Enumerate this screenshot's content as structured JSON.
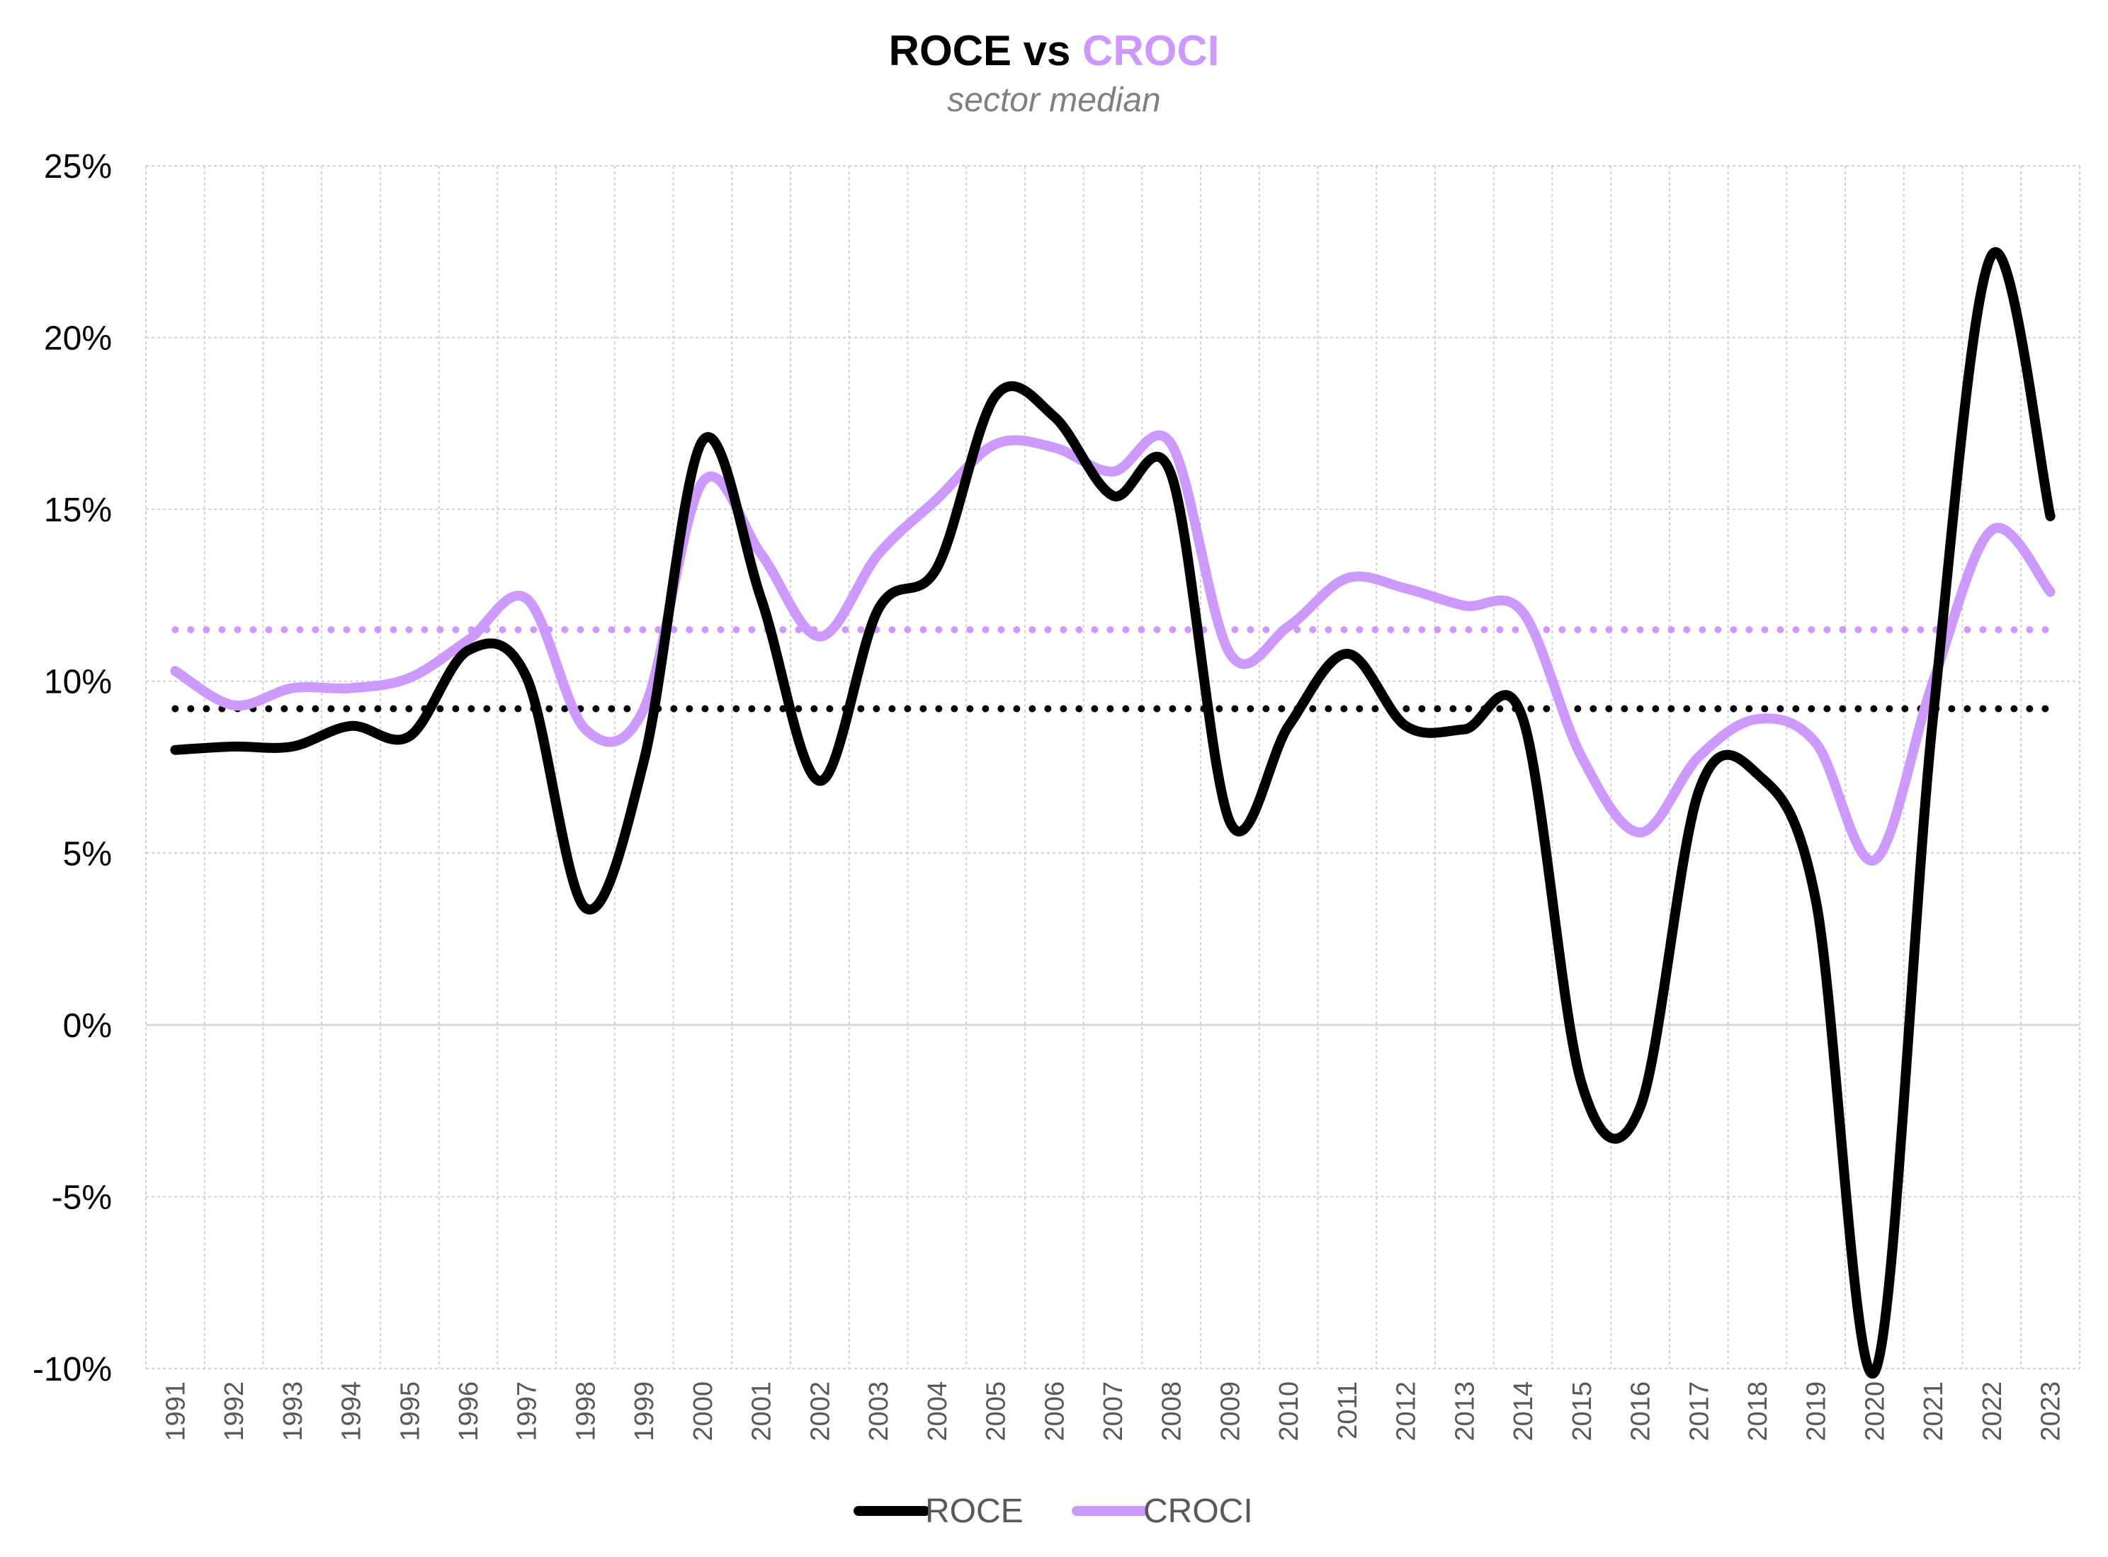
{
  "chart_data": {
    "type": "line",
    "title": {
      "parts": [
        {
          "text": "ROCE",
          "color": "#000000"
        },
        {
          "text": " vs ",
          "color": "#000000"
        },
        {
          "text": "CROCI",
          "color": "#cc99ff"
        }
      ]
    },
    "subtitle": "sector median",
    "xlabel": "",
    "ylabel": "",
    "ylim": [
      -0.1,
      0.25
    ],
    "yticks": [
      -0.1,
      -0.05,
      0.0,
      0.05,
      0.1,
      0.15,
      0.2,
      0.25
    ],
    "ytick_labels": [
      "-10%",
      "-5%",
      "0%",
      "5%",
      "10%",
      "15%",
      "20%",
      "25%"
    ],
    "categories": [
      "1991",
      "1992",
      "1993",
      "1994",
      "1995",
      "1996",
      "1997",
      "1998",
      "1999",
      "2000",
      "2001",
      "2002",
      "2003",
      "2004",
      "2005",
      "2006",
      "2007",
      "2008",
      "2009",
      "2010",
      "2011",
      "2012",
      "2013",
      "2014",
      "2015",
      "2016",
      "2017",
      "2018",
      "2019",
      "2020",
      "2021",
      "2022",
      "2023"
    ],
    "grid": true,
    "legend_position": "bottom",
    "series": [
      {
        "name": "ROCE",
        "color": "#000000",
        "values": [
          0.08,
          0.081,
          0.081,
          0.087,
          0.084,
          0.109,
          0.101,
          0.034,
          0.077,
          0.17,
          0.124,
          0.071,
          0.121,
          0.133,
          0.183,
          0.177,
          0.154,
          0.16,
          0.059,
          0.087,
          0.108,
          0.087,
          0.086,
          0.089,
          -0.017,
          -0.024,
          0.068,
          0.073,
          0.036,
          -0.101,
          0.09,
          0.224,
          0.148
        ]
      },
      {
        "name": "CROCI",
        "color": "#cc99ff",
        "values": [
          0.103,
          0.093,
          0.098,
          0.098,
          0.101,
          0.112,
          0.124,
          0.086,
          0.092,
          0.158,
          0.137,
          0.113,
          0.137,
          0.153,
          0.169,
          0.168,
          0.161,
          0.169,
          0.108,
          0.116,
          0.13,
          0.127,
          0.122,
          0.12,
          0.078,
          0.056,
          0.078,
          0.089,
          0.082,
          0.048,
          0.1,
          0.144,
          0.126
        ]
      }
    ],
    "reference_lines": [
      {
        "series": "ROCE",
        "color": "#000000",
        "value": 0.092,
        "style": "dotted"
      },
      {
        "series": "CROCI",
        "color": "#cc99ff",
        "value": 0.115,
        "style": "dotted"
      }
    ]
  }
}
